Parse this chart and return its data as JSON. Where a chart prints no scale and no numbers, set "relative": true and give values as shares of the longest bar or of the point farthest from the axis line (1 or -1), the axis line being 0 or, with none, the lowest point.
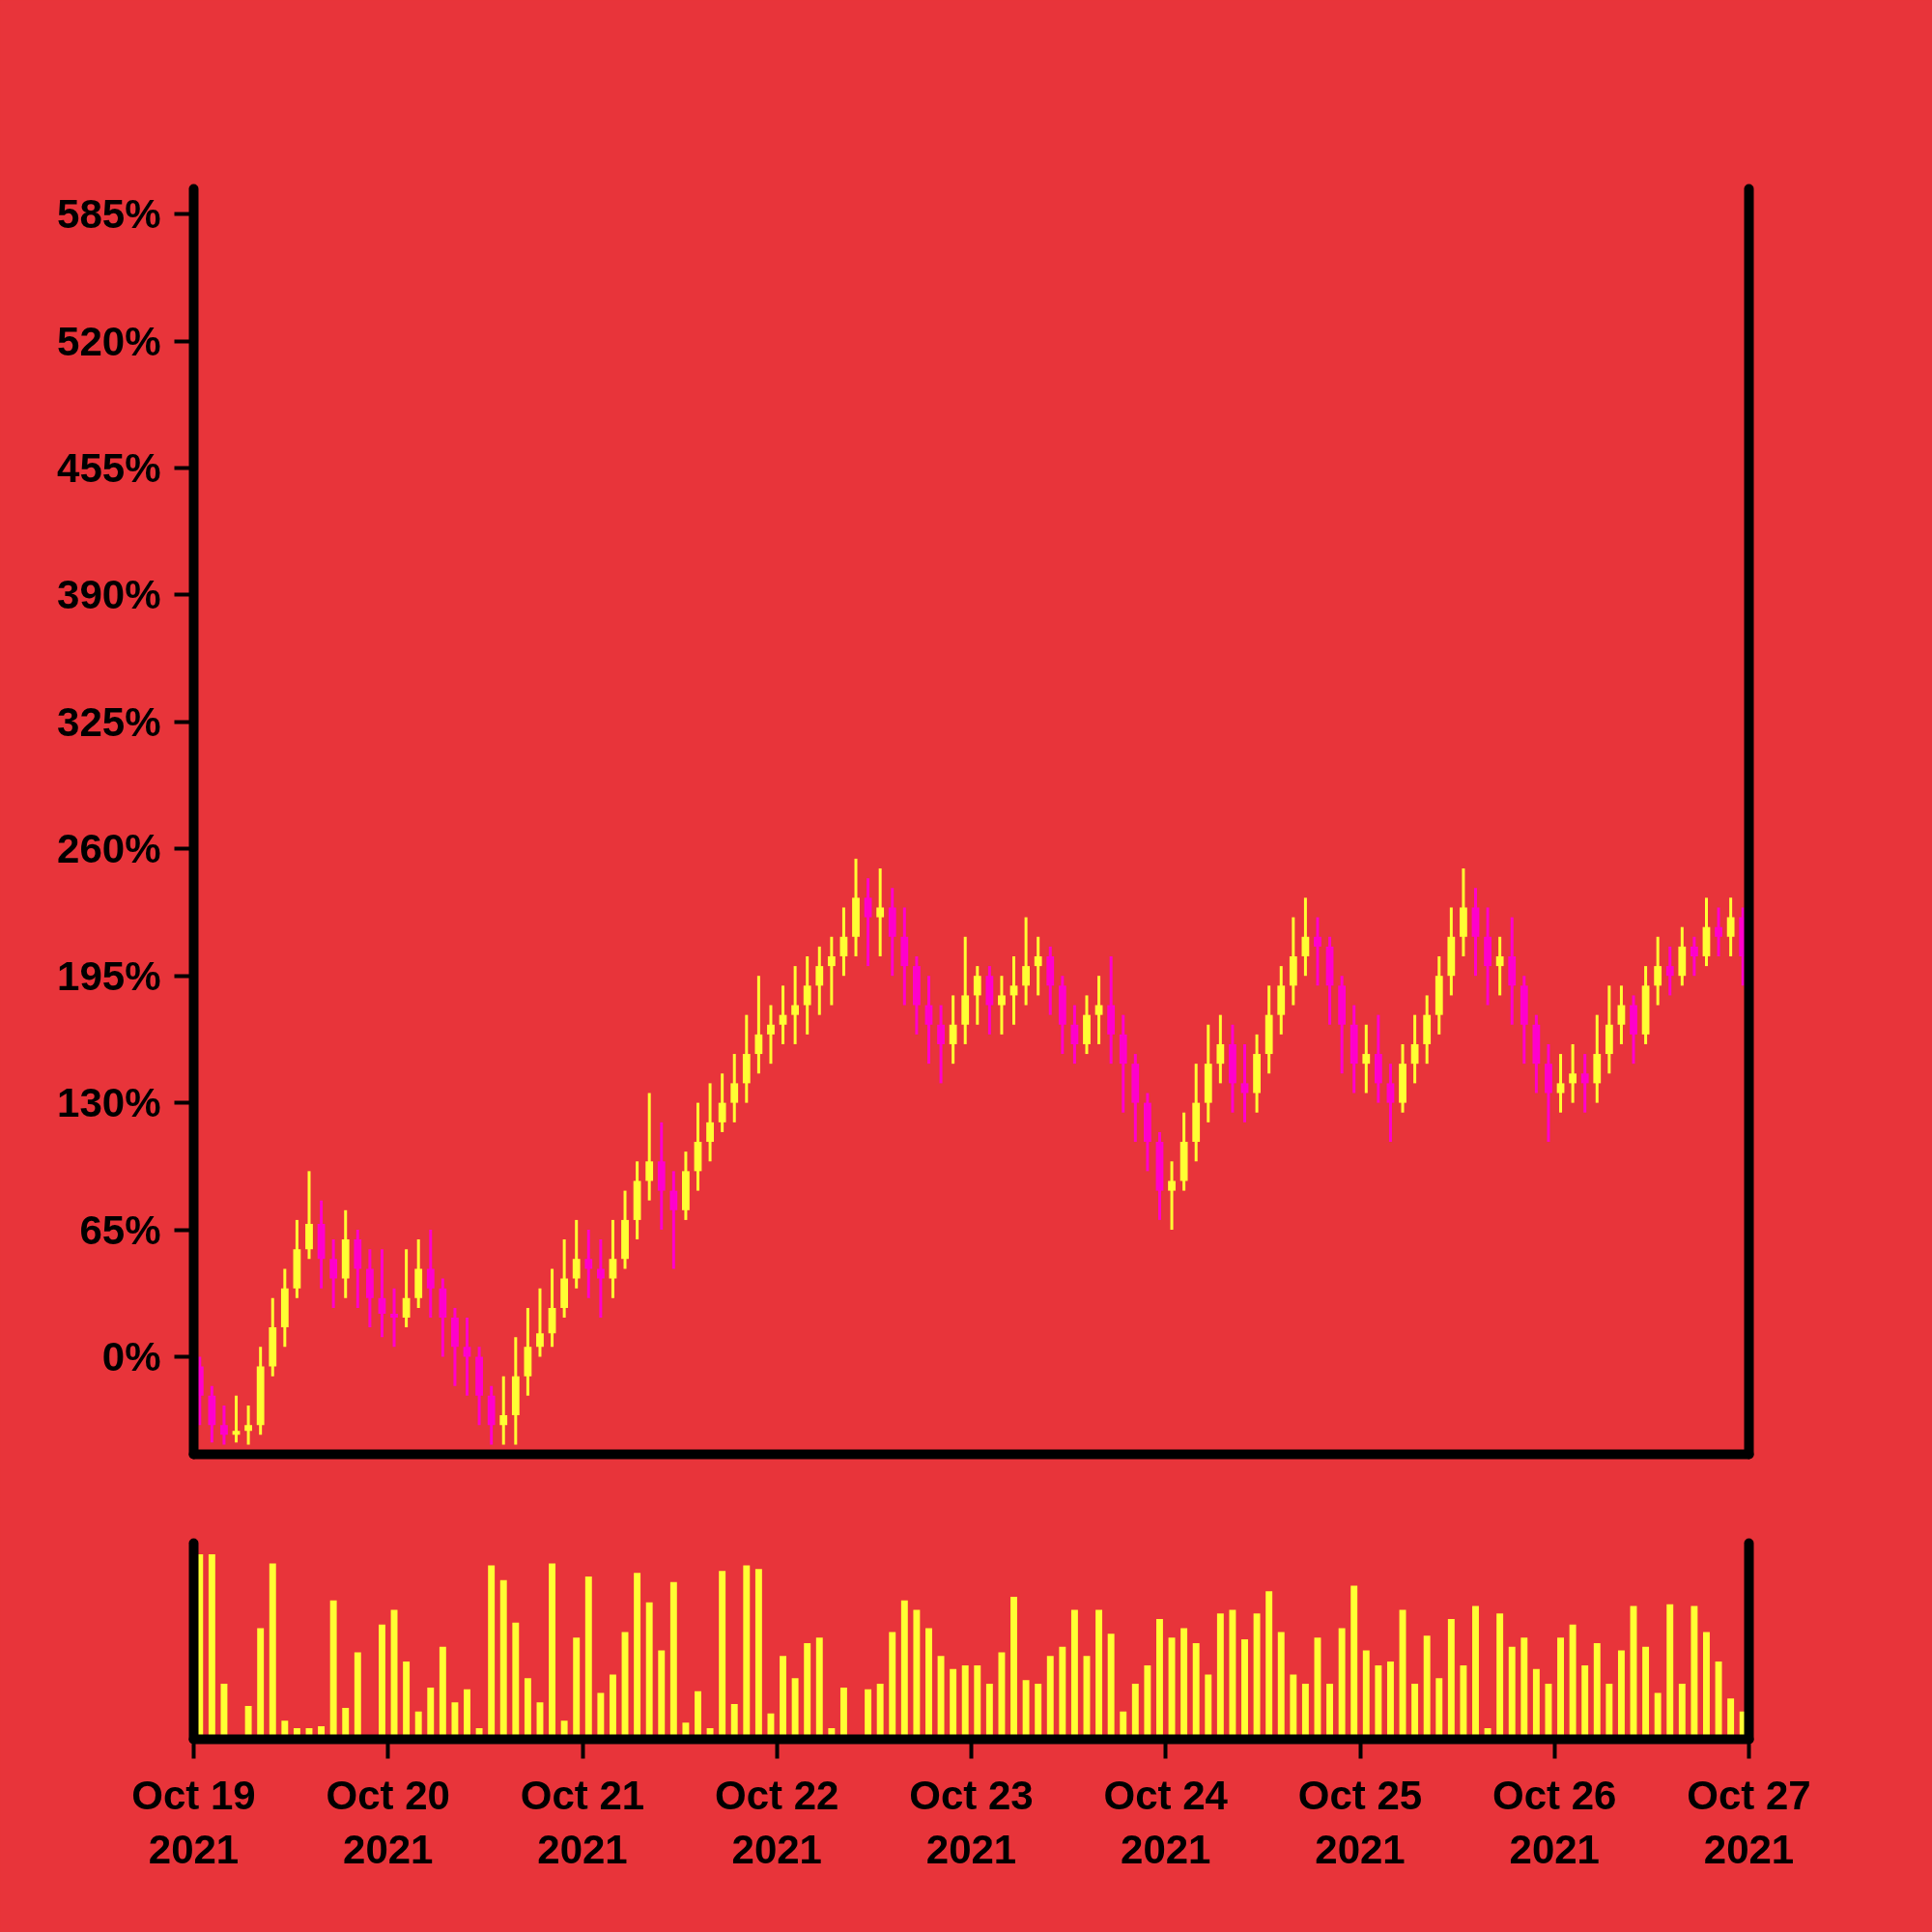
{
  "chart_data": [
    {
      "type": "candlestick",
      "tick_labels": "y",
      "xlim": [
        "2021-10-19",
        "2021-10-27"
      ],
      "ylim": [
        -50,
        598
      ],
      "yticks": [
        {
          "value": 0,
          "label": "0%"
        },
        {
          "value": 65,
          "label": "65%"
        },
        {
          "value": 130,
          "label": "130%"
        },
        {
          "value": 195,
          "label": "195%"
        },
        {
          "value": 260,
          "label": "260%"
        },
        {
          "value": 325,
          "label": "325%"
        },
        {
          "value": 390,
          "label": "390%"
        },
        {
          "value": 455,
          "label": "455%"
        },
        {
          "value": 520,
          "label": "520%"
        },
        {
          "value": 585,
          "label": "585%"
        }
      ],
      "x": [
        "2021-10-19T00:45",
        "2021-10-19T02:15",
        "2021-10-19T03:45",
        "2021-10-19T05:15",
        "2021-10-19T06:45",
        "2021-10-19T08:15",
        "2021-10-19T09:45",
        "2021-10-19T11:15",
        "2021-10-19T12:45",
        "2021-10-19T14:15",
        "2021-10-19T15:45",
        "2021-10-19T17:15",
        "2021-10-19T18:45",
        "2021-10-19T20:15",
        "2021-10-19T21:45",
        "2021-10-19T23:15",
        "2021-10-20T00:45",
        "2021-10-20T02:15",
        "2021-10-20T03:45",
        "2021-10-20T05:15",
        "2021-10-20T06:45",
        "2021-10-20T08:15",
        "2021-10-20T09:45",
        "2021-10-20T11:15",
        "2021-10-20T12:45",
        "2021-10-20T14:15",
        "2021-10-20T15:45",
        "2021-10-20T17:15",
        "2021-10-20T18:45",
        "2021-10-20T20:15",
        "2021-10-20T21:45",
        "2021-10-20T23:15",
        "2021-10-21T00:45",
        "2021-10-21T02:15",
        "2021-10-21T03:45",
        "2021-10-21T05:15",
        "2021-10-21T06:45",
        "2021-10-21T08:15",
        "2021-10-21T09:45",
        "2021-10-21T11:15",
        "2021-10-21T12:45",
        "2021-10-21T14:15",
        "2021-10-21T15:45",
        "2021-10-21T17:15",
        "2021-10-21T18:45",
        "2021-10-21T20:15",
        "2021-10-21T21:45",
        "2021-10-21T23:15",
        "2021-10-22T00:45",
        "2021-10-22T02:15",
        "2021-10-22T03:45",
        "2021-10-22T05:15",
        "2021-10-22T06:45",
        "2021-10-22T08:15",
        "2021-10-22T09:45",
        "2021-10-22T11:15",
        "2021-10-22T12:45",
        "2021-10-22T14:15",
        "2021-10-22T15:45",
        "2021-10-22T17:15",
        "2021-10-22T18:45",
        "2021-10-22T20:15",
        "2021-10-22T21:45",
        "2021-10-22T23:15",
        "2021-10-23T00:45",
        "2021-10-23T02:15",
        "2021-10-23T03:45",
        "2021-10-23T05:15",
        "2021-10-23T06:45",
        "2021-10-23T08:15",
        "2021-10-23T09:45",
        "2021-10-23T11:15",
        "2021-10-23T12:45",
        "2021-10-23T14:15",
        "2021-10-23T15:45",
        "2021-10-23T17:15",
        "2021-10-23T18:45",
        "2021-10-23T20:15",
        "2021-10-23T21:45",
        "2021-10-23T23:15",
        "2021-10-24T00:45",
        "2021-10-24T02:15",
        "2021-10-24T03:45",
        "2021-10-24T05:15",
        "2021-10-24T06:45",
        "2021-10-24T08:15",
        "2021-10-24T09:45",
        "2021-10-24T11:15",
        "2021-10-24T12:45",
        "2021-10-24T14:15",
        "2021-10-24T15:45",
        "2021-10-24T17:15",
        "2021-10-24T18:45",
        "2021-10-24T20:15",
        "2021-10-24T21:45",
        "2021-10-24T23:15",
        "2021-10-25T00:45",
        "2021-10-25T02:15",
        "2021-10-25T03:45",
        "2021-10-25T05:15",
        "2021-10-25T06:45",
        "2021-10-25T08:15",
        "2021-10-25T09:45",
        "2021-10-25T11:15",
        "2021-10-25T12:45",
        "2021-10-25T14:15",
        "2021-10-25T15:45",
        "2021-10-25T17:15",
        "2021-10-25T18:45",
        "2021-10-25T20:15",
        "2021-10-25T21:45",
        "2021-10-25T23:15",
        "2021-10-26T00:45",
        "2021-10-26T02:15",
        "2021-10-26T03:45",
        "2021-10-26T05:15",
        "2021-10-26T06:45",
        "2021-10-26T08:15",
        "2021-10-26T09:45",
        "2021-10-26T11:15",
        "2021-10-26T12:45",
        "2021-10-26T14:15",
        "2021-10-26T15:45",
        "2021-10-26T17:15",
        "2021-10-26T18:45",
        "2021-10-26T20:15",
        "2021-10-26T21:45",
        "2021-10-26T23:15"
      ],
      "ohlc": [
        [
          -5,
          0,
          -35,
          -20
        ],
        [
          -20,
          -15,
          -44,
          -35
        ],
        [
          -35,
          -25,
          -45,
          -40
        ],
        [
          -40,
          -20,
          -44,
          -38
        ],
        [
          -38,
          -25,
          -45,
          -35
        ],
        [
          -35,
          5,
          -40,
          -5
        ],
        [
          -5,
          30,
          -10,
          15
        ],
        [
          15,
          45,
          5,
          35
        ],
        [
          35,
          70,
          30,
          55
        ],
        [
          55,
          95,
          50,
          68
        ],
        [
          68,
          80,
          35,
          50
        ],
        [
          50,
          60,
          25,
          40
        ],
        [
          40,
          75,
          30,
          60
        ],
        [
          60,
          65,
          25,
          45
        ],
        [
          45,
          55,
          15,
          30
        ],
        [
          30,
          55,
          10,
          22
        ],
        [
          22,
          35,
          5,
          20
        ],
        [
          20,
          55,
          15,
          30
        ],
        [
          30,
          60,
          25,
          45
        ],
        [
          45,
          65,
          20,
          35
        ],
        [
          35,
          40,
          0,
          20
        ],
        [
          20,
          25,
          -15,
          5
        ],
        [
          5,
          20,
          -20,
          0
        ],
        [
          0,
          5,
          -35,
          -20
        ],
        [
          -20,
          -15,
          -45,
          -35
        ],
        [
          -35,
          -10,
          -45,
          -30
        ],
        [
          -30,
          10,
          -45,
          -10
        ],
        [
          -10,
          25,
          -20,
          5
        ],
        [
          5,
          35,
          0,
          12
        ],
        [
          12,
          45,
          5,
          25
        ],
        [
          25,
          60,
          20,
          40
        ],
        [
          40,
          70,
          35,
          50
        ],
        [
          50,
          65,
          30,
          45
        ],
        [
          45,
          60,
          20,
          40
        ],
        [
          40,
          70,
          30,
          50
        ],
        [
          50,
          85,
          45,
          70
        ],
        [
          70,
          100,
          60,
          90
        ],
        [
          90,
          135,
          80,
          100
        ],
        [
          100,
          120,
          65,
          85
        ],
        [
          85,
          95,
          45,
          75
        ],
        [
          75,
          105,
          70,
          95
        ],
        [
          95,
          130,
          85,
          110
        ],
        [
          110,
          140,
          100,
          120
        ],
        [
          120,
          145,
          115,
          130
        ],
        [
          130,
          155,
          120,
          140
        ],
        [
          140,
          175,
          130,
          155
        ],
        [
          155,
          195,
          145,
          165
        ],
        [
          165,
          180,
          150,
          170
        ],
        [
          170,
          190,
          160,
          175
        ],
        [
          175,
          200,
          160,
          180
        ],
        [
          180,
          205,
          165,
          190
        ],
        [
          190,
          210,
          175,
          200
        ],
        [
          200,
          215,
          180,
          205
        ],
        [
          205,
          230,
          195,
          215
        ],
        [
          215,
          255,
          205,
          235
        ],
        [
          235,
          245,
          200,
          225
        ],
        [
          225,
          250,
          205,
          230
        ],
        [
          230,
          240,
          195,
          215
        ],
        [
          215,
          230,
          180,
          200
        ],
        [
          200,
          205,
          165,
          180
        ],
        [
          180,
          195,
          150,
          170
        ],
        [
          170,
          180,
          140,
          160
        ],
        [
          160,
          185,
          150,
          170
        ],
        [
          170,
          215,
          160,
          185
        ],
        [
          185,
          200,
          170,
          195
        ],
        [
          195,
          200,
          165,
          180
        ],
        [
          180,
          195,
          165,
          185
        ],
        [
          185,
          205,
          170,
          190
        ],
        [
          190,
          225,
          180,
          200
        ],
        [
          200,
          215,
          185,
          205
        ],
        [
          205,
          210,
          175,
          190
        ],
        [
          190,
          195,
          155,
          170
        ],
        [
          170,
          180,
          150,
          160
        ],
        [
          160,
          185,
          155,
          175
        ],
        [
          175,
          195,
          160,
          180
        ],
        [
          180,
          205,
          150,
          165
        ],
        [
          165,
          175,
          125,
          150
        ],
        [
          150,
          155,
          110,
          130
        ],
        [
          130,
          135,
          95,
          110
        ],
        [
          110,
          115,
          70,
          85
        ],
        [
          85,
          100,
          65,
          90
        ],
        [
          90,
          125,
          85,
          110
        ],
        [
          110,
          150,
          100,
          130
        ],
        [
          130,
          170,
          120,
          150
        ],
        [
          150,
          175,
          140,
          160
        ],
        [
          160,
          170,
          125,
          140
        ],
        [
          140,
          160,
          120,
          135
        ],
        [
          135,
          165,
          125,
          155
        ],
        [
          155,
          190,
          145,
          175
        ],
        [
          175,
          200,
          165,
          190
        ],
        [
          190,
          225,
          180,
          205
        ],
        [
          205,
          235,
          195,
          215
        ],
        [
          215,
          225,
          190,
          210
        ],
        [
          210,
          215,
          170,
          190
        ],
        [
          190,
          195,
          145,
          170
        ],
        [
          170,
          180,
          135,
          150
        ],
        [
          150,
          170,
          135,
          155
        ],
        [
          155,
          175,
          130,
          140
        ],
        [
          140,
          150,
          110,
          130
        ],
        [
          130,
          160,
          125,
          150
        ],
        [
          150,
          175,
          140,
          160
        ],
        [
          160,
          185,
          150,
          175
        ],
        [
          175,
          205,
          165,
          195
        ],
        [
          195,
          230,
          185,
          215
        ],
        [
          215,
          250,
          205,
          230
        ],
        [
          230,
          240,
          195,
          215
        ],
        [
          215,
          230,
          180,
          200
        ],
        [
          200,
          215,
          185,
          205
        ],
        [
          205,
          225,
          170,
          190
        ],
        [
          190,
          195,
          150,
          170
        ],
        [
          170,
          175,
          135,
          150
        ],
        [
          150,
          160,
          110,
          135
        ],
        [
          135,
          155,
          125,
          140
        ],
        [
          140,
          160,
          130,
          145
        ],
        [
          145,
          155,
          125,
          140
        ],
        [
          140,
          175,
          130,
          155
        ],
        [
          155,
          190,
          145,
          170
        ],
        [
          170,
          190,
          160,
          180
        ],
        [
          180,
          185,
          150,
          165
        ],
        [
          165,
          200,
          160,
          190
        ],
        [
          190,
          215,
          180,
          200
        ],
        [
          200,
          210,
          185,
          195
        ],
        [
          195,
          220,
          190,
          210
        ],
        [
          210,
          215,
          195,
          205
        ],
        [
          205,
          235,
          200,
          220
        ],
        [
          220,
          230,
          205,
          215
        ],
        [
          215,
          235,
          205,
          225
        ],
        [
          225,
          230,
          190,
          205
        ]
      ],
      "colors": [
        "#ff00cc",
        "#ff00cc",
        "#ff00cc",
        "#ffff33",
        "#ffff33",
        "#ffff33",
        "#ffff33",
        "#ffff33",
        "#ffff33",
        "#ffff33",
        "#ff00cc",
        "#ff00cc",
        "#ffff33",
        "#ff00cc",
        "#ff00cc",
        "#ff00cc",
        "#ff00cc",
        "#ffff33",
        "#ffff33",
        "#ff00cc",
        "#ff00cc",
        "#ff00cc",
        "#ff00cc",
        "#ff00cc",
        "#ff00cc",
        "#ffff33",
        "#ffff33",
        "#ffff33",
        "#ffff33",
        "#ffff33",
        "#ffff33",
        "#ffff33",
        "#ff00cc",
        "#ff00cc",
        "#ffff33",
        "#ffff33",
        "#ffff33",
        "#ffff33",
        "#ff00cc",
        "#ff00cc",
        "#ffff33",
        "#ffff33",
        "#ffff33",
        "#ffff33",
        "#ffff33",
        "#ffff33",
        "#ffff33",
        "#ffff33",
        "#ffff33",
        "#ffff33",
        "#ffff33",
        "#ffff33",
        "#ffff33",
        "#ffff33",
        "#ffff33",
        "#ff00cc",
        "#ffff33",
        "#ff00cc",
        "#ff00cc",
        "#ff00cc",
        "#ff00cc",
        "#ff00cc",
        "#ffff33",
        "#ffff33",
        "#ffff33",
        "#ff00cc",
        "#ffff33",
        "#ffff33",
        "#ffff33",
        "#ffff33",
        "#ff00cc",
        "#ff00cc",
        "#ff00cc",
        "#ffff33",
        "#ffff33",
        "#ff00cc",
        "#ff00cc",
        "#ff00cc",
        "#ff00cc",
        "#ff00cc",
        "#ffff33",
        "#ffff33",
        "#ffff33",
        "#ffff33",
        "#ffff33",
        "#ff00cc",
        "#ff00cc",
        "#ffff33",
        "#ffff33",
        "#ffff33",
        "#ffff33",
        "#ffff33",
        "#ff00cc",
        "#ff00cc",
        "#ff00cc",
        "#ff00cc",
        "#ffff33",
        "#ff00cc",
        "#ff00cc",
        "#ffff33",
        "#ffff33",
        "#ffff33",
        "#ffff33",
        "#ffff33",
        "#ffff33",
        "#ff00cc",
        "#ff00cc",
        "#ffff33",
        "#ff00cc",
        "#ff00cc",
        "#ff00cc",
        "#ff00cc",
        "#ffff33",
        "#ffff33",
        "#ff00cc",
        "#ffff33",
        "#ffff33",
        "#ffff33",
        "#ff00cc",
        "#ffff33",
        "#ffff33",
        "#ff00cc",
        "#ffff33",
        "#ff00cc",
        "#ffff33",
        "#ff00cc",
        "#ffff33",
        "#ff00cc"
      ]
    },
    {
      "type": "bar",
      "relative": true,
      "tick_labels": "x",
      "color": "#ffff33",
      "xlim": [
        "2021-10-19",
        "2021-10-27"
      ],
      "xticks": [
        {
          "value": "2021-10-19",
          "label": "Oct 19\n2021"
        },
        {
          "value": "2021-10-20",
          "label": "Oct 20\n2021"
        },
        {
          "value": "2021-10-21",
          "label": "Oct 21\n2021"
        },
        {
          "value": "2021-10-22",
          "label": "Oct 22\n2021"
        },
        {
          "value": "2021-10-23",
          "label": "Oct 23\n2021"
        },
        {
          "value": "2021-10-24",
          "label": "Oct 24\n2021"
        },
        {
          "value": "2021-10-25",
          "label": "Oct 25\n2021"
        },
        {
          "value": "2021-10-26",
          "label": "Oct 26\n2021"
        },
        {
          "value": "2021-10-27",
          "label": "Oct 27\n2021"
        }
      ],
      "x": [
        "2021-10-19T00:45",
        "2021-10-19T02:15",
        "2021-10-19T03:45",
        "2021-10-19T05:15",
        "2021-10-19T06:45",
        "2021-10-19T08:15",
        "2021-10-19T09:45",
        "2021-10-19T11:15",
        "2021-10-19T12:45",
        "2021-10-19T14:15",
        "2021-10-19T15:45",
        "2021-10-19T17:15",
        "2021-10-19T18:45",
        "2021-10-19T20:15",
        "2021-10-19T21:45",
        "2021-10-19T23:15",
        "2021-10-20T00:45",
        "2021-10-20T02:15",
        "2021-10-20T03:45",
        "2021-10-20T05:15",
        "2021-10-20T06:45",
        "2021-10-20T08:15",
        "2021-10-20T09:45",
        "2021-10-20T11:15",
        "2021-10-20T12:45",
        "2021-10-20T14:15",
        "2021-10-20T15:45",
        "2021-10-20T17:15",
        "2021-10-20T18:45",
        "2021-10-20T20:15",
        "2021-10-20T21:45",
        "2021-10-20T23:15",
        "2021-10-21T00:45",
        "2021-10-21T02:15",
        "2021-10-21T03:45",
        "2021-10-21T05:15",
        "2021-10-21T06:45",
        "2021-10-21T08:15",
        "2021-10-21T09:45",
        "2021-10-21T11:15",
        "2021-10-21T12:45",
        "2021-10-21T14:15",
        "2021-10-21T15:45",
        "2021-10-21T17:15",
        "2021-10-21T18:45",
        "2021-10-21T20:15",
        "2021-10-21T21:45",
        "2021-10-21T23:15",
        "2021-10-22T00:45",
        "2021-10-22T02:15",
        "2021-10-22T03:45",
        "2021-10-22T05:15",
        "2021-10-22T06:45",
        "2021-10-22T08:15",
        "2021-10-22T09:45",
        "2021-10-22T11:15",
        "2021-10-22T12:45",
        "2021-10-22T14:15",
        "2021-10-22T15:45",
        "2021-10-22T17:15",
        "2021-10-22T18:45",
        "2021-10-22T20:15",
        "2021-10-22T21:45",
        "2021-10-22T23:15",
        "2021-10-23T00:45",
        "2021-10-23T02:15",
        "2021-10-23T03:45",
        "2021-10-23T05:15",
        "2021-10-23T06:45",
        "2021-10-23T08:15",
        "2021-10-23T09:45",
        "2021-10-23T11:15",
        "2021-10-23T12:45",
        "2021-10-23T14:15",
        "2021-10-23T15:45",
        "2021-10-23T17:15",
        "2021-10-23T18:45",
        "2021-10-23T20:15",
        "2021-10-23T21:45",
        "2021-10-23T23:15",
        "2021-10-24T00:45",
        "2021-10-24T02:15",
        "2021-10-24T03:45",
        "2021-10-24T05:15",
        "2021-10-24T06:45",
        "2021-10-24T08:15",
        "2021-10-24T09:45",
        "2021-10-24T11:15",
        "2021-10-24T12:45",
        "2021-10-24T14:15",
        "2021-10-24T15:45",
        "2021-10-24T17:15",
        "2021-10-24T18:45",
        "2021-10-24T20:15",
        "2021-10-24T21:45",
        "2021-10-24T23:15",
        "2021-10-25T00:45",
        "2021-10-25T02:15",
        "2021-10-25T03:45",
        "2021-10-25T05:15",
        "2021-10-25T06:45",
        "2021-10-25T08:15",
        "2021-10-25T09:45",
        "2021-10-25T11:15",
        "2021-10-25T12:45",
        "2021-10-25T14:15",
        "2021-10-25T15:45",
        "2021-10-25T17:15",
        "2021-10-25T18:45",
        "2021-10-25T20:15",
        "2021-10-25T21:45",
        "2021-10-25T23:15",
        "2021-10-26T00:45",
        "2021-10-26T02:15",
        "2021-10-26T03:45",
        "2021-10-26T05:15",
        "2021-10-26T06:45",
        "2021-10-26T08:15",
        "2021-10-26T09:45",
        "2021-10-26T11:15",
        "2021-10-26T12:45",
        "2021-10-26T14:15",
        "2021-10-26T15:45",
        "2021-10-26T17:15",
        "2021-10-26T18:45",
        "2021-10-26T20:15",
        "2021-10-26T21:45",
        "2021-10-26T23:15"
      ],
      "values": [
        1.0,
        1.0,
        0.3,
        null,
        0.18,
        0.6,
        0.95,
        0.1,
        0.06,
        0.06,
        0.07,
        0.75,
        0.17,
        0.47,
        null,
        0.62,
        0.7,
        0.42,
        0.15,
        0.28,
        0.5,
        0.2,
        0.27,
        0.06,
        0.94,
        0.86,
        0.63,
        0.33,
        0.2,
        0.95,
        0.1,
        0.55,
        0.88,
        0.25,
        0.35,
        0.58,
        0.9,
        0.74,
        0.48,
        0.85,
        0.09,
        0.26,
        0.06,
        0.91,
        0.19,
        0.94,
        0.92,
        0.14,
        0.45,
        0.33,
        0.52,
        0.55,
        0.06,
        0.28,
        null,
        0.27,
        0.3,
        0.58,
        0.75,
        0.7,
        0.6,
        0.45,
        0.38,
        0.4,
        0.4,
        0.3,
        0.47,
        0.77,
        0.32,
        0.3,
        0.45,
        0.5,
        0.7,
        0.45,
        0.7,
        0.57,
        0.15,
        0.3,
        0.4,
        0.65,
        0.55,
        0.6,
        0.52,
        0.35,
        0.68,
        0.7,
        0.54,
        0.68,
        0.8,
        0.58,
        0.35,
        0.3,
        0.55,
        0.3,
        0.6,
        0.83,
        0.48,
        0.4,
        0.42,
        0.7,
        0.3,
        0.56,
        0.33,
        0.65,
        0.4,
        0.72,
        0.06,
        0.68,
        0.5,
        0.55,
        0.38,
        0.3,
        0.55,
        0.62,
        0.4,
        0.52,
        0.3,
        0.48,
        0.72,
        0.5,
        0.25,
        0.73,
        0.3,
        0.72,
        0.58,
        0.42,
        0.22,
        0.15
      ]
    }
  ]
}
